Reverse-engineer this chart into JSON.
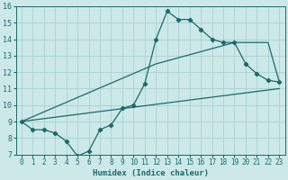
{
  "xlabel": "Humidex (Indice chaleur)",
  "bg_color": "#cce8e8",
  "grid_color": "#afd4d4",
  "line_color": "#1a6b6b",
  "xlim": [
    -0.5,
    23.5
  ],
  "ylim": [
    7,
    16
  ],
  "xticks": [
    0,
    1,
    2,
    3,
    4,
    5,
    6,
    7,
    8,
    9,
    10,
    11,
    12,
    13,
    14,
    15,
    16,
    17,
    18,
    19,
    20,
    21,
    22,
    23
  ],
  "yticks": [
    7,
    8,
    9,
    10,
    11,
    12,
    13,
    14,
    15,
    16
  ],
  "line1_x": [
    0,
    1,
    2,
    3,
    4,
    5,
    6,
    7,
    8,
    9,
    10,
    11,
    12,
    13,
    14,
    15,
    16,
    17,
    18,
    19,
    20,
    21,
    22,
    23
  ],
  "line1_y": [
    9.0,
    8.5,
    8.5,
    8.3,
    7.8,
    6.9,
    7.2,
    8.5,
    8.8,
    9.8,
    10.0,
    11.3,
    14.0,
    15.7,
    15.2,
    15.2,
    14.6,
    14.0,
    13.8,
    13.8,
    12.5,
    11.9,
    11.5,
    11.4
  ],
  "line2_x": [
    0,
    23
  ],
  "line2_y": [
    9.0,
    11.0
  ],
  "line3_x": [
    0,
    12,
    19,
    22,
    23
  ],
  "line3_y": [
    9.0,
    12.5,
    13.8,
    13.8,
    11.4
  ]
}
